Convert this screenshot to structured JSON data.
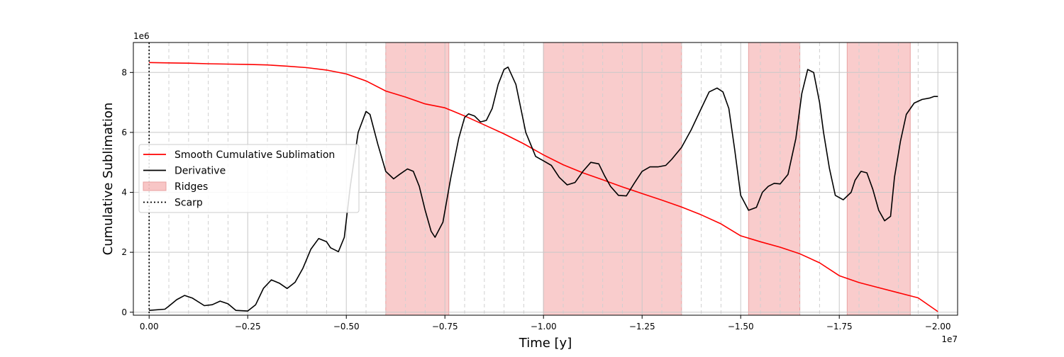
{
  "chart_data": {
    "type": "line",
    "xlabel": "Time [y]",
    "ylabel": "Cumulative Sublimation",
    "x_offset_text": "1e7",
    "y_offset_text": "1e6",
    "x_scale": 10000000,
    "y_scale": 1000000,
    "xlim": [
      400000,
      -20500000
    ],
    "ylim": [
      -100000,
      9000000
    ],
    "x_ticks": [
      0,
      -2500000,
      -5000000,
      -7500000,
      -10000000,
      -12500000,
      -15000000,
      -17500000,
      -20000000
    ],
    "x_tick_labels": [
      "0.00",
      "−0.25",
      "−0.50",
      "−0.75",
      "−1.00",
      "−1.25",
      "−1.50",
      "−1.75",
      "−2.00"
    ],
    "y_ticks": [
      0,
      2000000,
      4000000,
      6000000,
      8000000
    ],
    "y_tick_labels": [
      "0",
      "2",
      "4",
      "6",
      "8"
    ],
    "grid": true,
    "legend_position": "center-left",
    "ridges": {
      "name": "Ridges",
      "color": "#f08080",
      "spans": [
        [
          -6000000,
          -7600000
        ],
        [
          -10000000,
          -13500000
        ],
        [
          -15200000,
          -16500000
        ],
        [
          -17700000,
          -19300000
        ]
      ]
    },
    "scarp": {
      "name": "Scarp",
      "x": 0
    },
    "series": [
      {
        "name": "Smooth Cumulative Sublimation",
        "color": "#ff0000",
        "x": [
          0,
          -500000,
          -1000000,
          -1500000,
          -2000000,
          -2500000,
          -3000000,
          -3500000,
          -4000000,
          -4500000,
          -5000000,
          -5500000,
          -6000000,
          -6500000,
          -7000000,
          -7500000,
          -8000000,
          -8500000,
          -9000000,
          -9500000,
          -10000000,
          -10500000,
          -11000000,
          -11500000,
          -12000000,
          -12500000,
          -13000000,
          -13500000,
          -14000000,
          -14500000,
          -15000000,
          -15500000,
          -16000000,
          -16500000,
          -17000000,
          -17500000,
          -18000000,
          -18500000,
          -19000000,
          -19500000,
          -20000000
        ],
        "y": [
          8330000,
          8320000,
          8310000,
          8290000,
          8280000,
          8270000,
          8250000,
          8210000,
          8160000,
          8080000,
          7950000,
          7720000,
          7380000,
          7180000,
          6950000,
          6820000,
          6550000,
          6250000,
          5950000,
          5620000,
          5250000,
          4920000,
          4650000,
          4420000,
          4180000,
          3960000,
          3740000,
          3510000,
          3250000,
          2950000,
          2550000,
          2350000,
          2170000,
          1950000,
          1650000,
          1220000,
          990000,
          820000,
          650000,
          480000,
          20000
        ]
      },
      {
        "name": "Derivative",
        "color": "#000000",
        "x": [
          0,
          -400000,
          -500000,
          -700000,
          -900000,
          -1100000,
          -1400000,
          -1600000,
          -1800000,
          -2000000,
          -2200000,
          -2500000,
          -2700000,
          -2900000,
          -3100000,
          -3300000,
          -3500000,
          -3700000,
          -3900000,
          -4100000,
          -4300000,
          -4500000,
          -4600000,
          -4800000,
          -4950000,
          -5100000,
          -5300000,
          -5500000,
          -5600000,
          -5800000,
          -6000000,
          -6200000,
          -6350000,
          -6550000,
          -6700000,
          -6850000,
          -7000000,
          -7150000,
          -7250000,
          -7450000,
          -7650000,
          -7850000,
          -8000000,
          -8100000,
          -8250000,
          -8400000,
          -8550000,
          -8700000,
          -8850000,
          -9000000,
          -9100000,
          -9300000,
          -9550000,
          -9800000,
          -10000000,
          -10200000,
          -10400000,
          -10600000,
          -10800000,
          -11000000,
          -11200000,
          -11400000,
          -11550000,
          -11700000,
          -11900000,
          -12100000,
          -12300000,
          -12500000,
          -12700000,
          -12900000,
          -13100000,
          -13250000,
          -13500000,
          -13750000,
          -14000000,
          -14200000,
          -14400000,
          -14550000,
          -14700000,
          -14850000,
          -15000000,
          -15200000,
          -15400000,
          -15550000,
          -15700000,
          -15850000,
          -16000000,
          -16200000,
          -16400000,
          -16550000,
          -16700000,
          -16850000,
          -17000000,
          -17100000,
          -17250000,
          -17400000,
          -17600000,
          -17800000,
          -17900000,
          -18050000,
          -18200000,
          -18350000,
          -18500000,
          -18650000,
          -18800000,
          -18900000,
          -19050000,
          -19200000,
          -19400000,
          -19600000,
          -19800000,
          -19900000,
          -20000000
        ],
        "y": [
          60000,
          100000,
          200000,
          420000,
          560000,
          470000,
          220000,
          250000,
          370000,
          280000,
          60000,
          40000,
          250000,
          800000,
          1080000,
          970000,
          790000,
          1000000,
          1470000,
          2100000,
          2460000,
          2350000,
          2150000,
          2020000,
          2500000,
          4200000,
          6000000,
          6700000,
          6600000,
          5600000,
          4700000,
          4450000,
          4600000,
          4780000,
          4700000,
          4200000,
          3400000,
          2700000,
          2500000,
          3000000,
          4500000,
          5800000,
          6500000,
          6620000,
          6550000,
          6350000,
          6400000,
          6800000,
          7600000,
          8100000,
          8180000,
          7600000,
          6000000,
          5200000,
          5050000,
          4900000,
          4500000,
          4250000,
          4330000,
          4700000,
          5000000,
          4950000,
          4550000,
          4200000,
          3900000,
          3880000,
          4300000,
          4700000,
          4850000,
          4850000,
          4900000,
          5100000,
          5500000,
          6100000,
          6800000,
          7350000,
          7480000,
          7350000,
          6800000,
          5400000,
          3900000,
          3400000,
          3500000,
          4000000,
          4200000,
          4300000,
          4280000,
          4600000,
          5800000,
          7300000,
          8100000,
          8000000,
          7000000,
          6000000,
          4800000,
          3900000,
          3750000,
          4000000,
          4400000,
          4700000,
          4650000,
          4100000,
          3400000,
          3050000,
          3200000,
          4500000,
          5700000,
          6600000,
          6980000,
          7100000,
          7150000,
          7200000,
          7200000
        ]
      }
    ]
  }
}
